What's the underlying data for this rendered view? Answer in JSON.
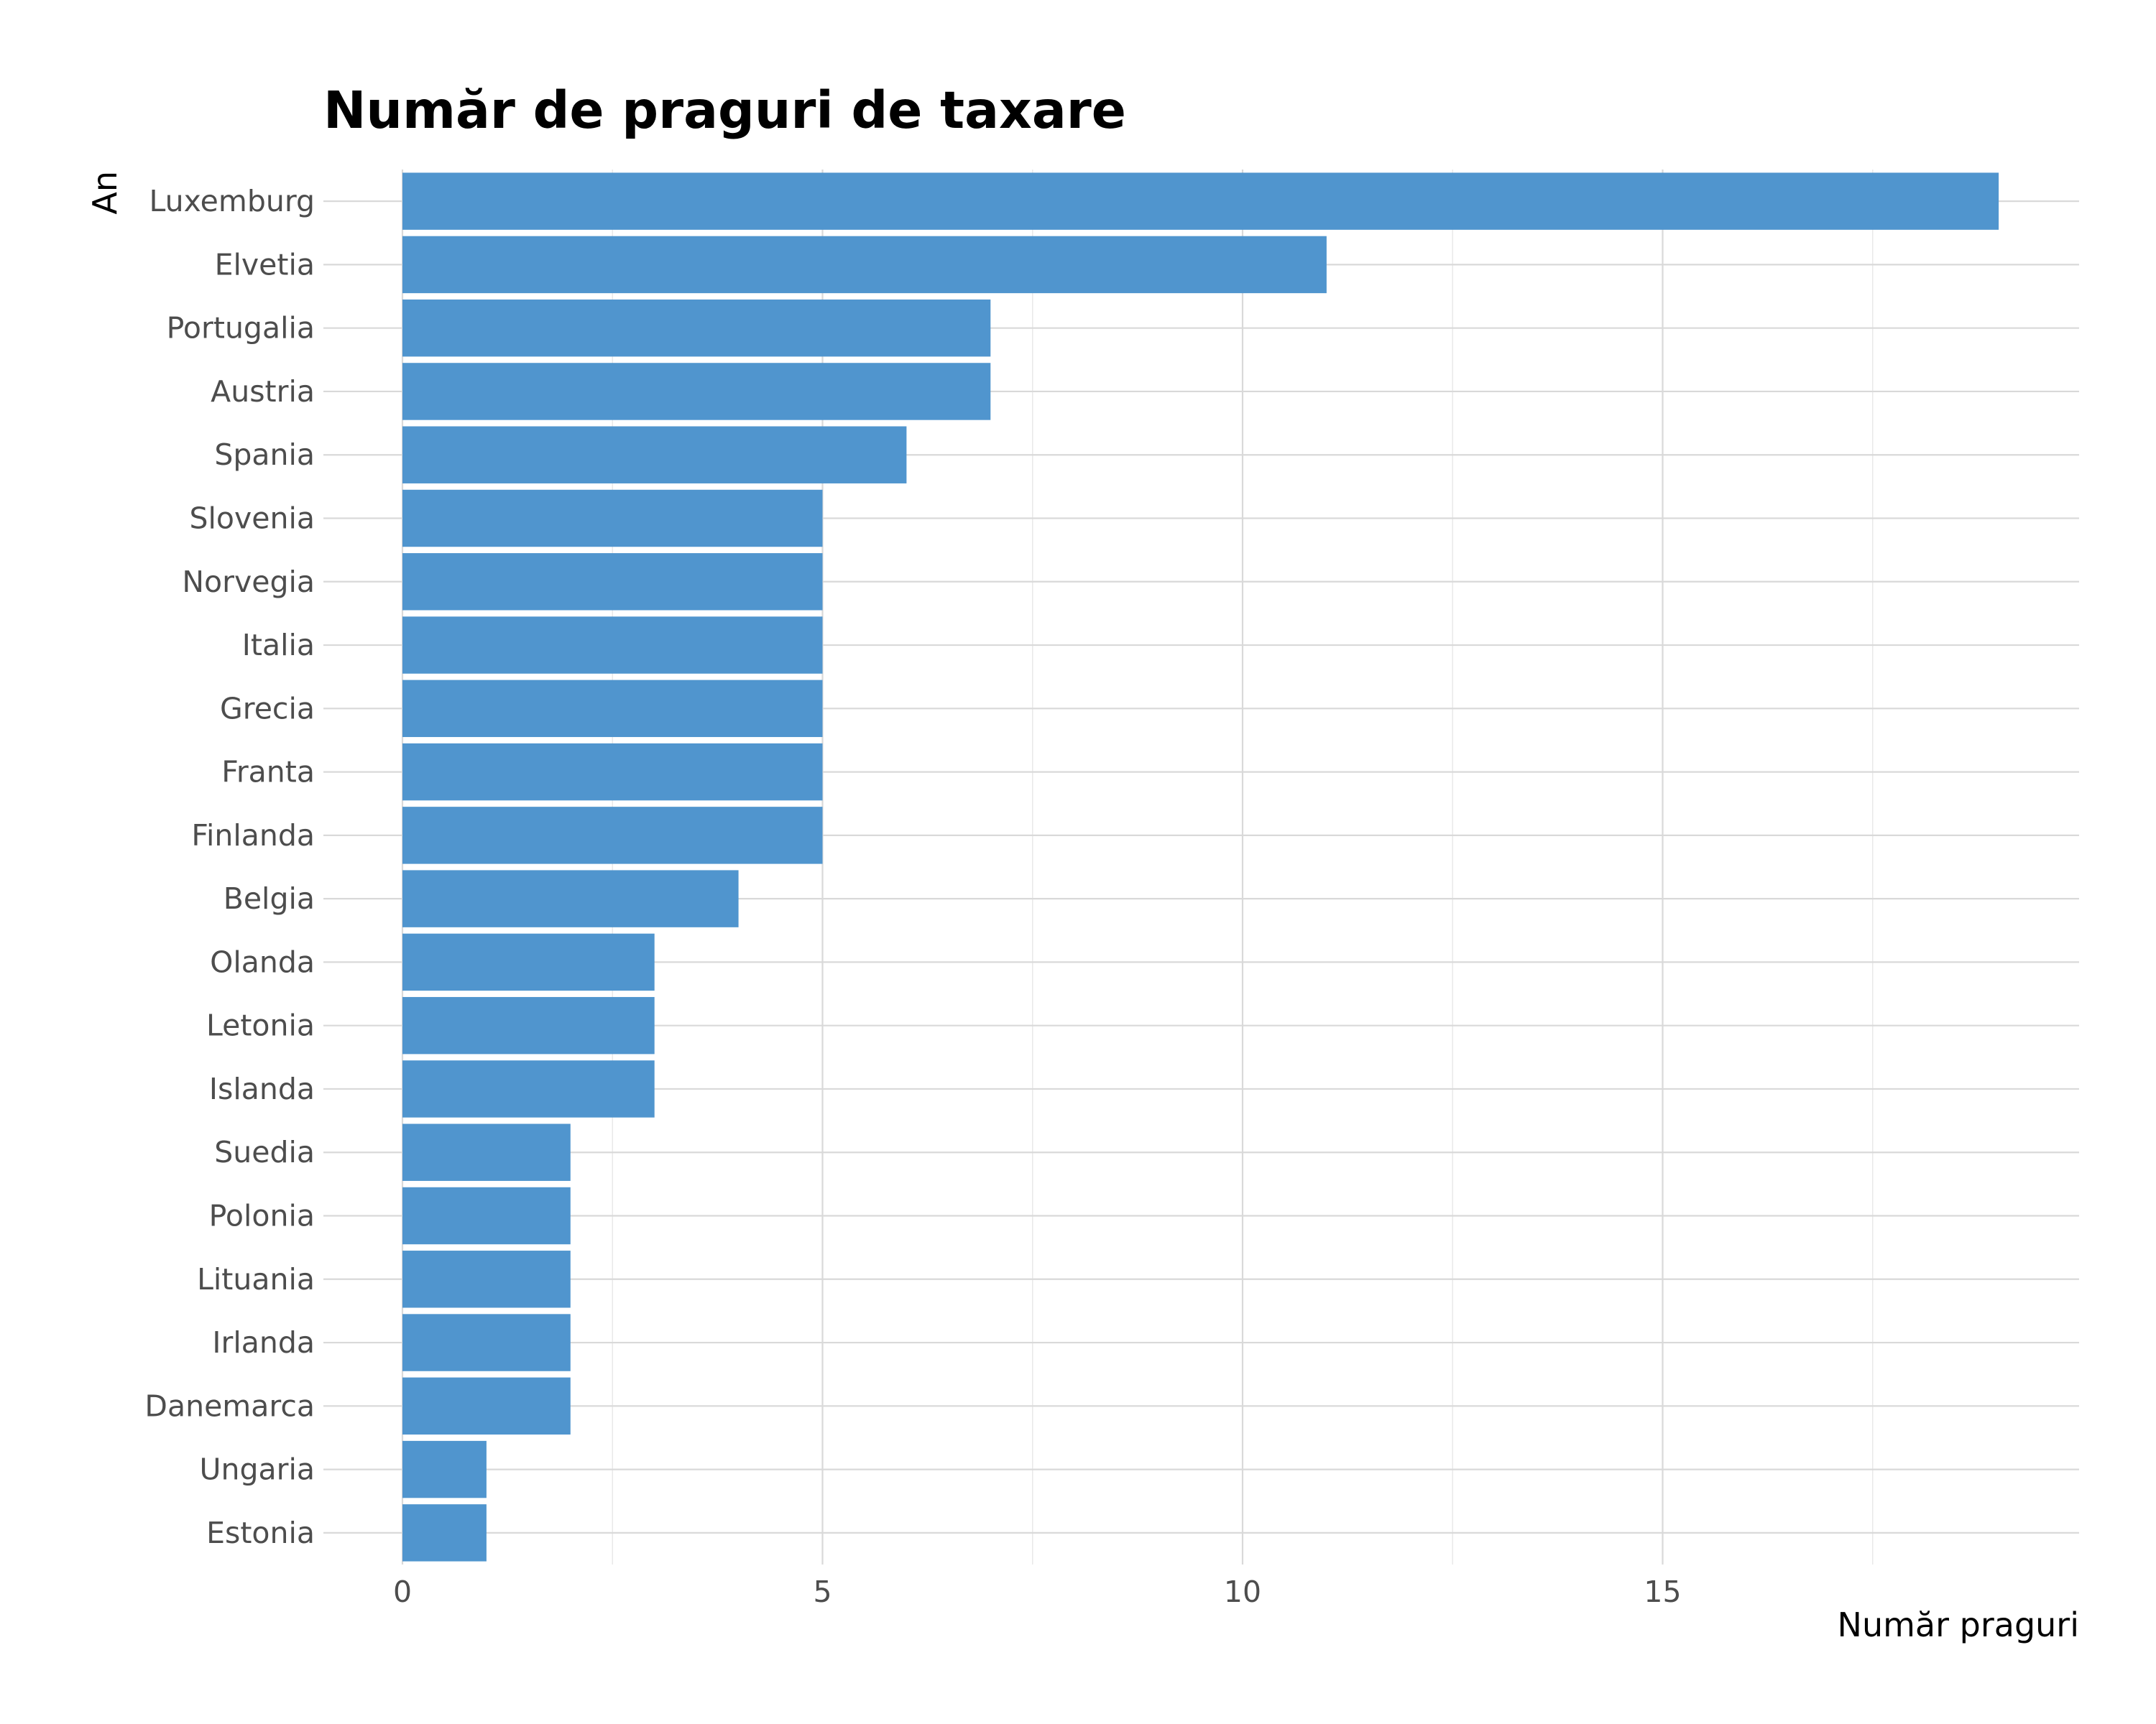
{
  "chart_data": {
    "type": "bar",
    "orientation": "horizontal",
    "title": "Număr de praguri de taxare",
    "xlabel": "Număr praguri",
    "ylabel": "An",
    "xlim": [
      0,
      20
    ],
    "xticks": [
      0,
      5,
      10,
      15
    ],
    "grid": true,
    "legend": "none",
    "bar_color": "#5095ce",
    "categories": [
      "Luxemburg",
      "Elvetia",
      "Portugalia",
      "Austria",
      "Spania",
      "Slovenia",
      "Norvegia",
      "Italia",
      "Grecia",
      "Franta",
      "Finlanda",
      "Belgia",
      "Olanda",
      "Letonia",
      "Islanda",
      "Suedia",
      "Polonia",
      "Lituania",
      "Irlanda",
      "Danemarca",
      "Ungaria",
      "Estonia"
    ],
    "values": [
      19,
      11,
      7,
      7,
      6,
      5,
      5,
      5,
      5,
      5,
      5,
      4,
      3,
      3,
      3,
      2,
      2,
      2,
      2,
      2,
      1,
      1
    ]
  }
}
